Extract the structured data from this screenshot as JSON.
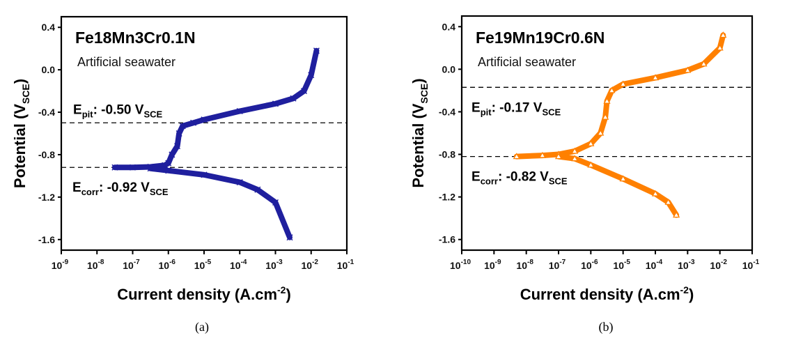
{
  "chart_data": [
    {
      "type": "scatter",
      "caption": "(a)",
      "title": "Fe18Mn3Cr0.1N",
      "subtitle": "Artificial seawater",
      "ylabel": {
        "main": "Potential (V",
        "sub": "SCE",
        "end": ")"
      },
      "xlabel": {
        "main": "Current density (A.cm",
        "sup": "-2",
        "end": ")"
      },
      "xscale": "log",
      "xlim_exp": [
        -9,
        -1
      ],
      "xtick_exps": [
        -9,
        -8,
        -7,
        -6,
        -5,
        -4,
        -3,
        -2,
        -1
      ],
      "ylim": [
        -1.7,
        0.5
      ],
      "yticks": [
        0.4,
        0.0,
        -0.4,
        -0.8,
        -1.2,
        -1.6
      ],
      "ytick_labels": [
        "0.4",
        "0.0",
        "-0.4",
        "-0.8",
        "-1.2",
        "-1.6"
      ],
      "marker": "x",
      "color": "#1f1f9e",
      "series": [
        {
          "name": "anodic",
          "log_x": [
            -7.5,
            -7.0,
            -6.5,
            -6.1,
            -6.0,
            -5.9,
            -5.75,
            -5.7,
            -5.6,
            -5.3,
            -5.0,
            -4.0,
            -3.0,
            -2.5,
            -2.2,
            -2.0,
            -1.85
          ],
          "y": [
            -0.92,
            -0.92,
            -0.915,
            -0.9,
            -0.88,
            -0.8,
            -0.72,
            -0.6,
            -0.53,
            -0.5,
            -0.47,
            -0.39,
            -0.32,
            -0.27,
            -0.2,
            -0.05,
            0.18
          ]
        },
        {
          "name": "cathodic",
          "log_x": [
            -6.5,
            -6.0,
            -5.0,
            -4.0,
            -3.5,
            -3.0,
            -2.6
          ],
          "y": [
            -0.93,
            -0.95,
            -0.99,
            -1.06,
            -1.13,
            -1.25,
            -1.58
          ]
        }
      ],
      "hlines": [
        {
          "y": -0.5,
          "label": {
            "E": "E",
            "sub": "pit",
            "text": ": -0.50 V",
            "unit": "SCE"
          }
        },
        {
          "y": -0.92,
          "label": {
            "E": "E",
            "sub": "corr",
            "text": ": -0.92 V",
            "unit": "SCE"
          }
        }
      ]
    },
    {
      "type": "scatter",
      "caption": "(b)",
      "title": "Fe19Mn19Cr0.6N",
      "subtitle": "Artificial seawater",
      "ylabel": {
        "main": "Potential (V",
        "sub": "SCE",
        "end": ")"
      },
      "xlabel": {
        "main": "Current density (A.cm",
        "sup": "-2",
        "end": ")"
      },
      "xscale": "log",
      "xlim_exp": [
        -10,
        -1
      ],
      "xtick_exps": [
        -10,
        -9,
        -8,
        -7,
        -6,
        -5,
        -4,
        -3,
        -2,
        -1
      ],
      "ylim": [
        -1.7,
        0.5
      ],
      "yticks": [
        0.4,
        0.0,
        -0.4,
        -0.8,
        -1.2,
        -1.6
      ],
      "ytick_labels": [
        "0.4",
        "0.0",
        "-0.4",
        "-0.8",
        "-1.2",
        "-1.6"
      ],
      "marker": "triangle",
      "color": "#ff8000",
      "series": [
        {
          "name": "anodic",
          "log_x": [
            -8.3,
            -7.5,
            -7.0,
            -6.5,
            -6.0,
            -5.7,
            -5.55,
            -5.5,
            -5.35,
            -5.0,
            -4.0,
            -3.0,
            -2.5,
            -2.0,
            -1.9
          ],
          "y": [
            -0.82,
            -0.81,
            -0.8,
            -0.77,
            -0.7,
            -0.6,
            -0.45,
            -0.3,
            -0.2,
            -0.14,
            -0.08,
            -0.01,
            0.05,
            0.2,
            0.32
          ]
        },
        {
          "name": "cathodic",
          "log_x": [
            -7.0,
            -6.5,
            -6.0,
            -5.0,
            -4.0,
            -3.6,
            -3.35
          ],
          "y": [
            -0.82,
            -0.84,
            -0.9,
            -1.03,
            -1.17,
            -1.25,
            -1.37
          ]
        }
      ],
      "hlines": [
        {
          "y": -0.17,
          "label": {
            "E": "E",
            "sub": "pit",
            "text": ": -0.17 V",
            "unit": "SCE"
          }
        },
        {
          "y": -0.82,
          "label": {
            "E": "E",
            "sub": "corr",
            "text": ": -0.82 V",
            "unit": "SCE"
          }
        }
      ]
    }
  ]
}
